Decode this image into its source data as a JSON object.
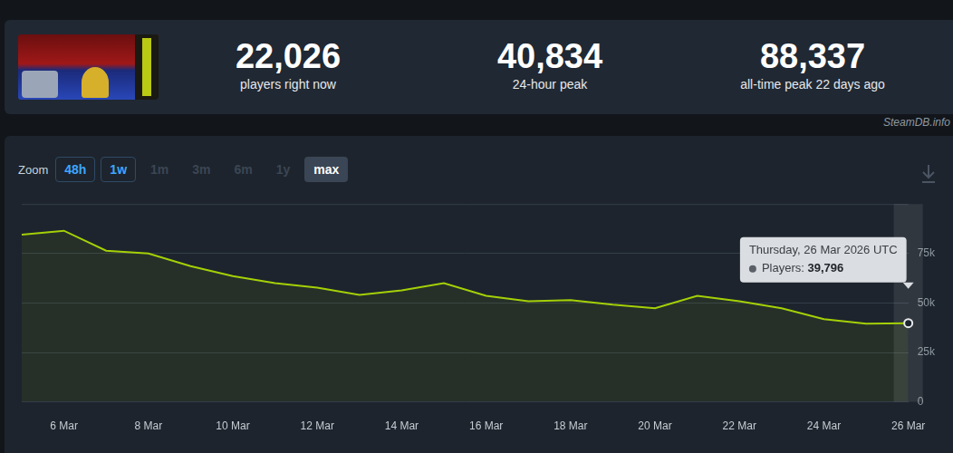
{
  "header": {
    "stats": [
      {
        "value": "22,026",
        "label": "players right now"
      },
      {
        "value": "40,834",
        "label": "24-hour peak"
      },
      {
        "value": "88,337",
        "label": "all-time peak 22 days ago"
      }
    ],
    "source": "SteamDB.info"
  },
  "zoom": {
    "label": "Zoom",
    "buttons": [
      "48h",
      "1w",
      "1m",
      "3m",
      "6m",
      "1y",
      "max"
    ],
    "active": "max",
    "enabled": [
      "48h",
      "1w"
    ]
  },
  "tooltip": {
    "title": "Thursday, 26 Mar 2026 UTC",
    "label": "Players:",
    "value": 39796,
    "value_label": "39,796"
  },
  "chart_data": {
    "type": "line",
    "categories": [
      null,
      "6 Mar",
      null,
      "8 Mar",
      null,
      "10 Mar",
      null,
      "12 Mar",
      null,
      "14 Mar",
      null,
      "16 Mar",
      null,
      "18 Mar",
      null,
      "20 Mar",
      null,
      "22 Mar",
      null,
      "24 Mar",
      null,
      "26 Mar"
    ],
    "values": [
      84500,
      86500,
      76400,
      75000,
      68600,
      63600,
      60000,
      57700,
      54100,
      56400,
      60000,
      53600,
      50900,
      51400,
      49100,
      47300,
      53600,
      50900,
      47300,
      41800,
      39500,
      39796
    ],
    "color": "#a4d007",
    "ylim": [
      0,
      100000
    ],
    "yticks": [
      0,
      {
        "value": 25000,
        "label": "25k"
      },
      {
        "value": 50000,
        "label": "50k"
      },
      {
        "value": 75000,
        "label": "75k"
      }
    ],
    "grid": true
  }
}
